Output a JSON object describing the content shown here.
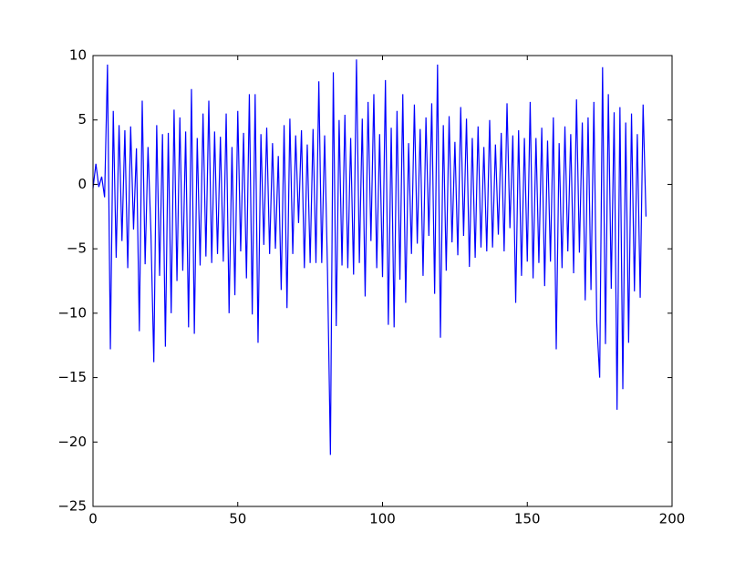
{
  "chart_data": {
    "type": "line",
    "x": [
      0,
      1,
      2,
      3,
      4,
      5,
      6,
      7,
      8,
      9,
      10,
      11,
      12,
      13,
      14,
      15,
      16,
      17,
      18,
      19,
      20,
      21,
      22,
      23,
      24,
      25,
      26,
      27,
      28,
      29,
      30,
      31,
      32,
      33,
      34,
      35,
      36,
      37,
      38,
      39,
      40,
      41,
      42,
      43,
      44,
      45,
      46,
      47,
      48,
      49,
      50,
      51,
      52,
      53,
      54,
      55,
      56,
      57,
      58,
      59,
      60,
      61,
      62,
      63,
      64,
      65,
      66,
      67,
      68,
      69,
      70,
      71,
      72,
      73,
      74,
      75,
      76,
      77,
      78,
      79,
      80,
      81,
      82,
      83,
      84,
      85,
      86,
      87,
      88,
      89,
      90,
      91,
      92,
      93,
      94,
      95,
      96,
      97,
      98,
      99,
      100,
      101,
      102,
      103,
      104,
      105,
      106,
      107,
      108,
      109,
      110,
      111,
      112,
      113,
      114,
      115,
      116,
      117,
      118,
      119,
      120,
      121,
      122,
      123,
      124,
      125,
      126,
      127,
      128,
      129,
      130,
      131,
      132,
      133,
      134,
      135,
      136,
      137,
      138,
      139,
      140,
      141,
      142,
      143,
      144,
      145,
      146,
      147,
      148,
      149,
      150,
      151,
      152,
      153,
      154,
      155,
      156,
      157,
      158,
      159,
      160,
      161,
      162,
      163,
      164,
      165,
      166,
      167,
      168,
      169,
      170,
      171,
      172,
      173,
      174,
      175,
      176,
      177,
      178,
      179,
      180,
      181,
      182,
      183,
      184,
      185,
      186,
      187,
      188,
      189,
      190,
      191
    ],
    "series": [
      {
        "color": "#0000ff",
        "values": [
          -0.3,
          1.6,
          -0.2,
          0.6,
          -1.0,
          9.3,
          -12.8,
          5.7,
          -5.7,
          4.6,
          -4.4,
          4.2,
          -6.5,
          4.5,
          -3.5,
          2.8,
          -11.4,
          6.5,
          -6.2,
          2.9,
          -3.7,
          -13.8,
          4.6,
          -7.1,
          3.9,
          -12.6,
          4.0,
          -10.0,
          5.8,
          -7.5,
          5.2,
          -6.7,
          4.1,
          -11.1,
          7.4,
          -11.6,
          3.6,
          -6.3,
          5.5,
          -5.6,
          6.5,
          -6.1,
          4.1,
          -5.4,
          3.7,
          -6.0,
          5.5,
          -10.0,
          2.9,
          -8.6,
          5.7,
          -5.2,
          4.0,
          -7.3,
          7.0,
          -10.1,
          7.0,
          -12.3,
          3.9,
          -4.7,
          4.4,
          -5.4,
          3.2,
          -5.0,
          2.2,
          -8.2,
          4.6,
          -9.6,
          5.1,
          -5.4,
          3.8,
          -3.0,
          4.2,
          -6.5,
          3.1,
          -6.1,
          4.3,
          -6.1,
          8.0,
          -6.1,
          3.8,
          -6.8,
          -21.0,
          8.7,
          -11.0,
          5.0,
          -6.3,
          5.4,
          -6.5,
          3.6,
          -7.0,
          9.7,
          -6.1,
          5.1,
          -8.7,
          6.4,
          -4.4,
          7.0,
          -6.5,
          3.9,
          -7.2,
          8.1,
          -10.9,
          4.4,
          -11.1,
          5.7,
          -7.4,
          7.0,
          -9.2,
          3.2,
          -5.4,
          6.2,
          -4.6,
          4.3,
          -7.1,
          5.2,
          -4.0,
          6.3,
          -8.5,
          9.3,
          -11.9,
          4.6,
          -6.7,
          5.3,
          -4.5,
          3.3,
          -5.5,
          6.0,
          -4.0,
          5.1,
          -6.4,
          3.6,
          -5.7,
          4.5,
          -4.9,
          2.9,
          -5.2,
          5.0,
          -4.9,
          3.1,
          -3.9,
          4.0,
          -5.2,
          6.3,
          -3.4,
          3.8,
          -9.2,
          4.2,
          -7.1,
          3.6,
          -6.0,
          6.4,
          -7.3,
          3.6,
          -6.1,
          4.4,
          -7.9,
          3.4,
          -6.0,
          5.2,
          -12.8,
          3.2,
          -6.5,
          4.5,
          -5.2,
          3.9,
          -6.9,
          6.6,
          -5.3,
          4.8,
          -9.0,
          5.2,
          -8.2,
          6.4,
          -10.7,
          -15.0,
          9.1,
          -12.4,
          7.0,
          -8.1,
          5.6,
          -17.5,
          6.0,
          -15.9,
          4.8,
          -12.3,
          5.5,
          -8.3,
          3.9,
          -8.8,
          6.2,
          -2.5
        ]
      }
    ],
    "xlim": [
      0,
      200
    ],
    "ylim": [
      -25,
      10
    ],
    "xticks": [
      0,
      50,
      100,
      150,
      200
    ],
    "yticks": [
      {
        "value": -25,
        "label": "−25"
      },
      {
        "value": -20,
        "label": "−20"
      },
      {
        "value": -15,
        "label": "−15"
      },
      {
        "value": -10,
        "label": "−10"
      },
      {
        "value": -5,
        "label": "−5"
      },
      0,
      5,
      10
    ]
  }
}
